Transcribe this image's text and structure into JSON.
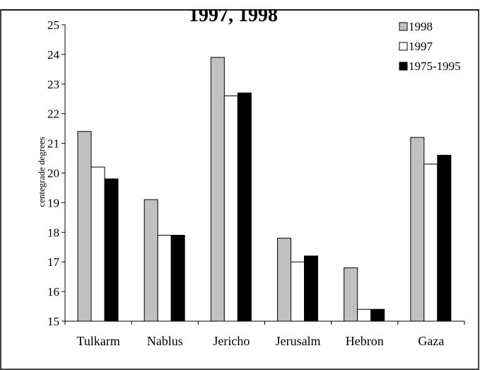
{
  "chart_data": {
    "type": "bar",
    "title": "1997, 1998",
    "xlabel": "",
    "ylabel": "centegrade degrees",
    "ylim": [
      15,
      25
    ],
    "yticks": [
      15,
      16,
      17,
      18,
      19,
      20,
      21,
      22,
      23,
      24,
      25
    ],
    "categories": [
      "Tulkarm",
      "Nablus",
      "Jericho",
      "Jerusalm",
      "Hebron",
      "Gaza"
    ],
    "series": [
      {
        "name": "1998",
        "color": "#c0c0c0",
        "values": [
          21.4,
          19.1,
          23.9,
          17.8,
          16.8,
          21.2
        ]
      },
      {
        "name": "1997",
        "color": "#ffffff",
        "values": [
          20.2,
          17.9,
          22.6,
          17.0,
          15.4,
          20.3
        ]
      },
      {
        "name": "1975-1995",
        "color": "#000000",
        "values": [
          19.8,
          17.9,
          22.7,
          17.2,
          15.4,
          20.6
        ]
      }
    ],
    "legend_position": "top-right",
    "grid": false
  }
}
